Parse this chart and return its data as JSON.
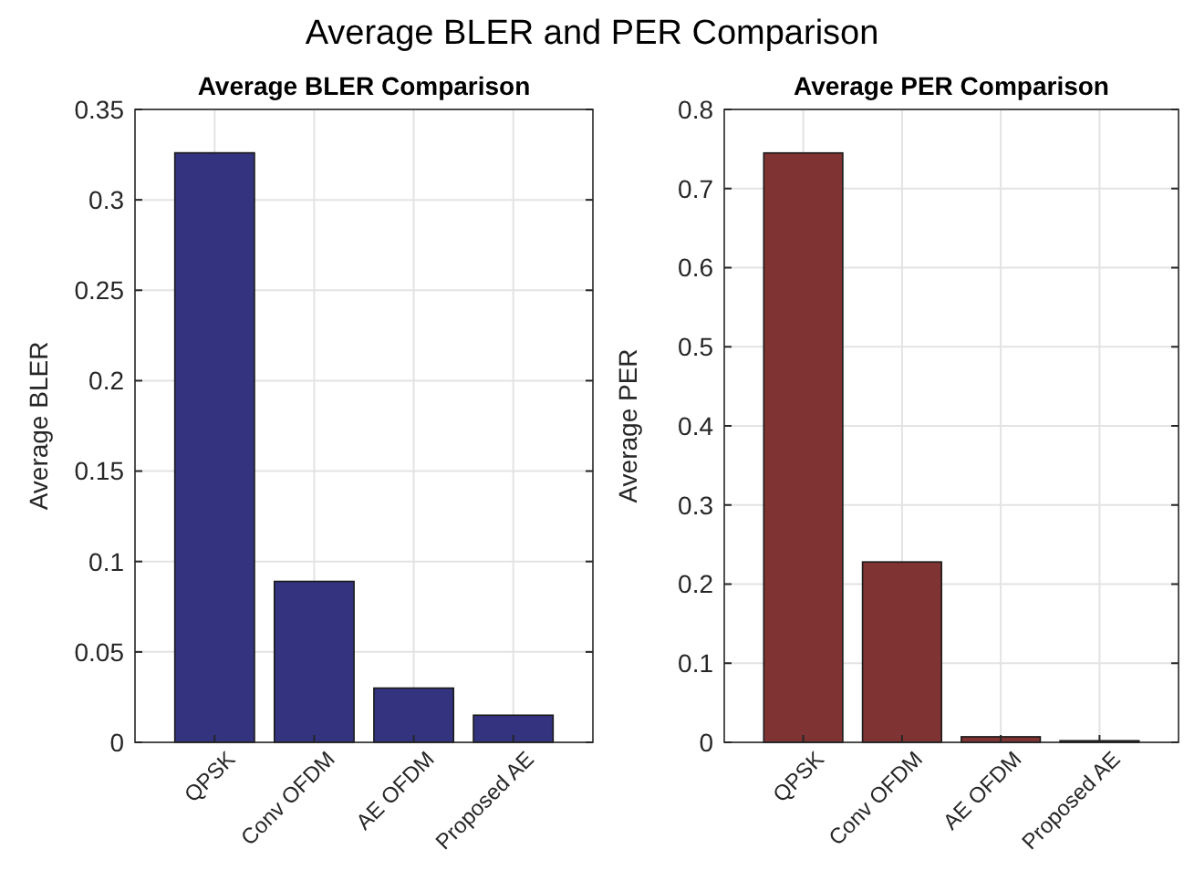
{
  "chart_data": [
    {
      "type": "bar",
      "title": "Average BLER Comparison",
      "ylabel": "Average BLER",
      "annotations": [
        "Average BLER and PER Comparison"
      ],
      "categories": [
        "QPSK",
        "Conv OFDM",
        "AE OFDM",
        "Proposed AE"
      ],
      "values": [
        0.326,
        0.089,
        0.03,
        0.015
      ],
      "color": "#333380",
      "ylim": [
        0,
        0.35
      ],
      "yticks": [
        0,
        0.05,
        0.1,
        0.15,
        0.2,
        0.25,
        0.3,
        0.35
      ],
      "grid": true
    },
    {
      "type": "bar",
      "title": "Average PER Comparison",
      "ylabel": "Average PER",
      "categories": [
        "QPSK",
        "Conv OFDM",
        "AE OFDM",
        "Proposed AE"
      ],
      "values": [
        0.745,
        0.228,
        0.007,
        0.002
      ],
      "color": "#803333",
      "ylim": [
        0,
        0.8
      ],
      "yticks": [
        0,
        0.1,
        0.2,
        0.3,
        0.4,
        0.5,
        0.6,
        0.7,
        0.8
      ],
      "grid": true
    }
  ]
}
